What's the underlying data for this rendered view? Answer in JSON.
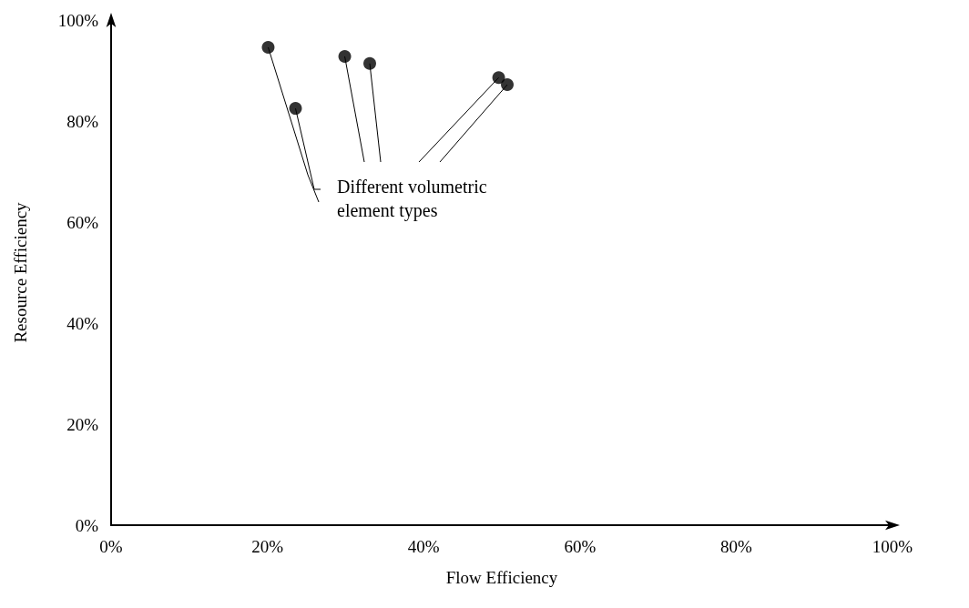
{
  "chart_data": {
    "type": "scatter",
    "xlabel": "Flow Efficiency",
    "ylabel": "Resource Efficiency",
    "x": [
      20.1,
      23.6,
      29.9,
      33.1,
      49.6,
      50.7
    ],
    "values": [
      94.6,
      82.5,
      92.8,
      91.4,
      88.6,
      87.2
    ],
    "color": "#000000",
    "marker": "circle",
    "grid": false,
    "xlim": [
      0,
      100
    ],
    "ylim": [
      0,
      100
    ],
    "xticks": [
      {
        "value": 0,
        "label": "0%"
      },
      {
        "value": 20,
        "label": "20%"
      },
      {
        "value": 40,
        "label": "40%"
      },
      {
        "value": 60,
        "label": "60%"
      },
      {
        "value": 80,
        "label": "80%"
      },
      {
        "value": 100,
        "label": "100%"
      }
    ],
    "yticks": [
      {
        "value": 0,
        "label": "0%"
      },
      {
        "value": 20,
        "label": "20%"
      },
      {
        "value": 40,
        "label": "40%"
      },
      {
        "value": 60,
        "label": "60%"
      },
      {
        "value": 80,
        "label": "80%"
      },
      {
        "value": 100,
        "label": "100%"
      }
    ],
    "annotations": [
      {
        "text": "Different volumetric\nelement types",
        "x": 20.1,
        "y": 94.6
      }
    ]
  }
}
